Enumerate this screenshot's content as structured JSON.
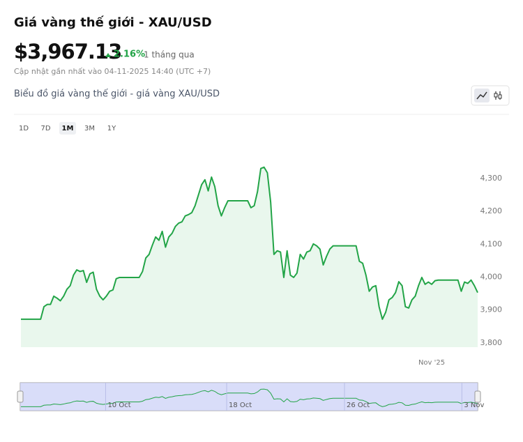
{
  "header": {
    "title": "Giá vàng thế giới - XAU/USD",
    "price": "$3,967.13",
    "change": "2.16%",
    "period": "1 tháng qua",
    "updated": "Cập nhật gần nhất vào 04-11-2025 14:40 (UTC +7)"
  },
  "chart_data": {
    "type": "line",
    "subtitle": "Biểu đồ giá vàng thế giới - giá vàng XAU/USD",
    "ranges": [
      "1D",
      "7D",
      "1M",
      "3M",
      "1Y"
    ],
    "active_range": 2,
    "color": "#22a447",
    "fill": "#e9f7ed",
    "ylim": [
      3787,
      4429
    ],
    "yticks": [
      {
        "value": 3800,
        "label": "3,800"
      },
      {
        "value": 3900,
        "label": "3,900"
      },
      {
        "value": 4000,
        "label": "4,000"
      },
      {
        "value": 4100,
        "label": "4,100"
      },
      {
        "value": 4200,
        "label": "4,200"
      },
      {
        "value": 4300,
        "label": "4,300"
      }
    ],
    "xticks": [
      {
        "value": 125,
        "label": "Nov '25"
      }
    ],
    "values": [
      3872,
      3872,
      3872,
      3872,
      3872,
      3872,
      3872,
      3910,
      3917,
      3917,
      3942,
      3936,
      3928,
      3942,
      3963,
      3974,
      4006,
      4022,
      4017,
      4020,
      3984,
      4010,
      4015,
      3963,
      3942,
      3931,
      3942,
      3957,
      3961,
      3995,
      3999,
      3999,
      3999,
      3999,
      3999,
      3999,
      3999,
      4017,
      4058,
      4069,
      4097,
      4122,
      4112,
      4139,
      4091,
      4122,
      4133,
      4154,
      4164,
      4168,
      4186,
      4190,
      4196,
      4217,
      4249,
      4281,
      4296,
      4262,
      4304,
      4275,
      4217,
      4186,
      4211,
      4232,
      4232,
      4232,
      4232,
      4232,
      4232,
      4232,
      4211,
      4217,
      4260,
      4330,
      4334,
      4317,
      4228,
      4069,
      4080,
      4076,
      3999,
      4080,
      4006,
      3999,
      4012,
      4069,
      4055,
      4076,
      4080,
      4101,
      4095,
      4085,
      4037,
      4063,
      4085,
      4095,
      4095,
      4095,
      4095,
      4095,
      4095,
      4095,
      4095,
      4048,
      4042,
      4006,
      3957,
      3970,
      3974,
      3910,
      3872,
      3893,
      3931,
      3938,
      3953,
      3986,
      3974,
      3910,
      3906,
      3931,
      3942,
      3974,
      3999,
      3978,
      3985,
      3978,
      3989,
      3991,
      3991,
      3991,
      3991,
      3991,
      3991,
      3991,
      3957,
      3985,
      3981,
      3991,
      3974,
      3953
    ],
    "navigator_labels": [
      "10 Oct",
      "18 Oct",
      "26 Oct",
      "3 Nov"
    ]
  }
}
